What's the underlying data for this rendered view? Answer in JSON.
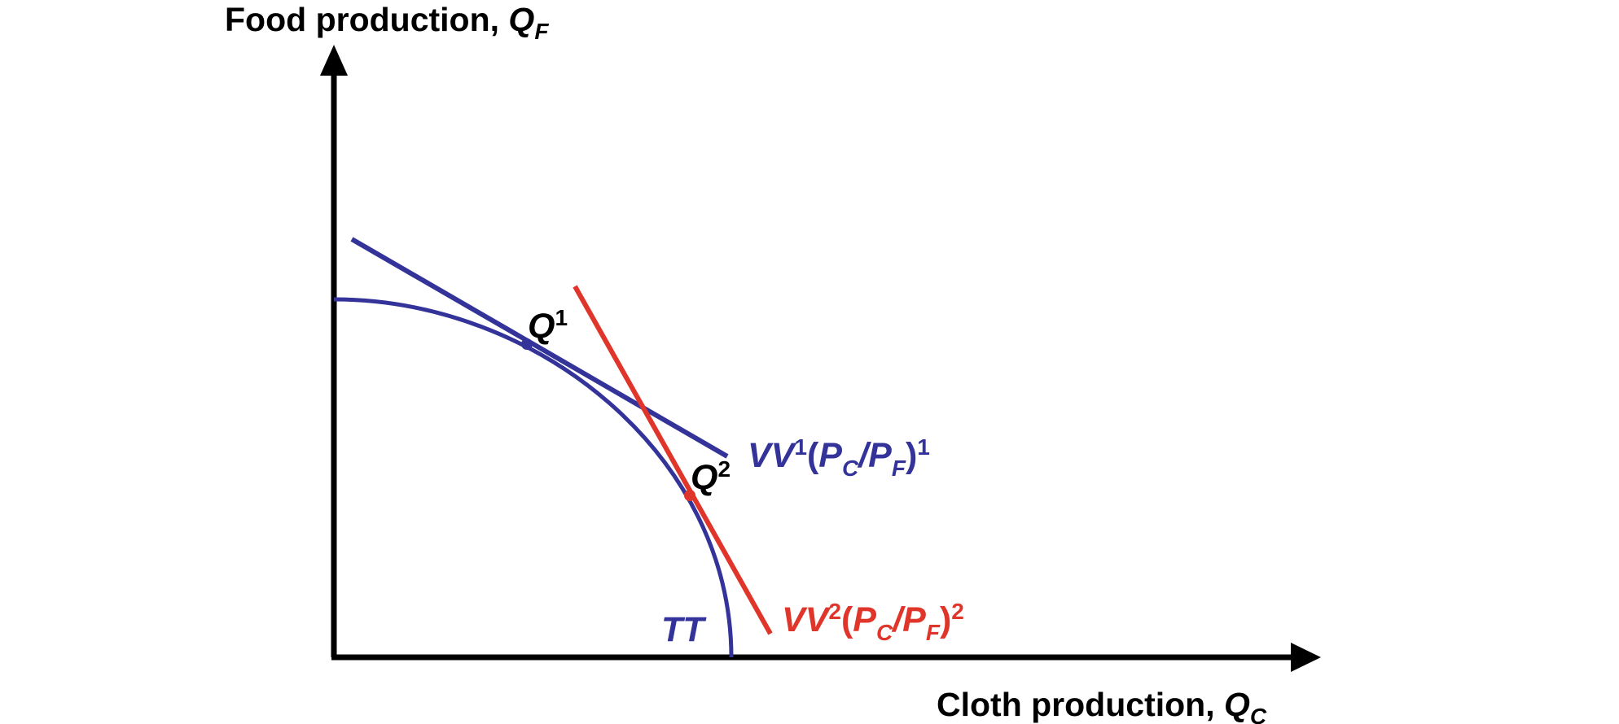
{
  "colors": {
    "axis": "#000000",
    "tt_curve": "#333399",
    "vv1_line": "#333399",
    "vv2_line": "#e0352b",
    "background": "#ffffff"
  },
  "y_axis": {
    "title_text": "Food production, ",
    "title_var": "Q",
    "title_sub": "F"
  },
  "x_axis": {
    "title_text": "Cloth production, ",
    "title_var": "Q",
    "title_sub": "C"
  },
  "curve": {
    "label": "TT"
  },
  "points": {
    "q1": {
      "var": "Q",
      "sup": "1"
    },
    "q2": {
      "var": "Q",
      "sup": "2"
    }
  },
  "vv1": {
    "vv": "VV",
    "vv_sup": "1",
    "open": "(",
    "pc": "P",
    "pc_sub": "C",
    "slash": "/",
    "pf": "P",
    "pf_sub": "F",
    "close": ")",
    "ratio_sup": "1"
  },
  "vv2": {
    "vv": "VV",
    "vv_sup": "2",
    "open": "(",
    "pc": "P",
    "pc_sub": "C",
    "slash": "/",
    "pf": "P",
    "pf_sub": "F",
    "close": ")",
    "ratio_sup": "2"
  }
}
